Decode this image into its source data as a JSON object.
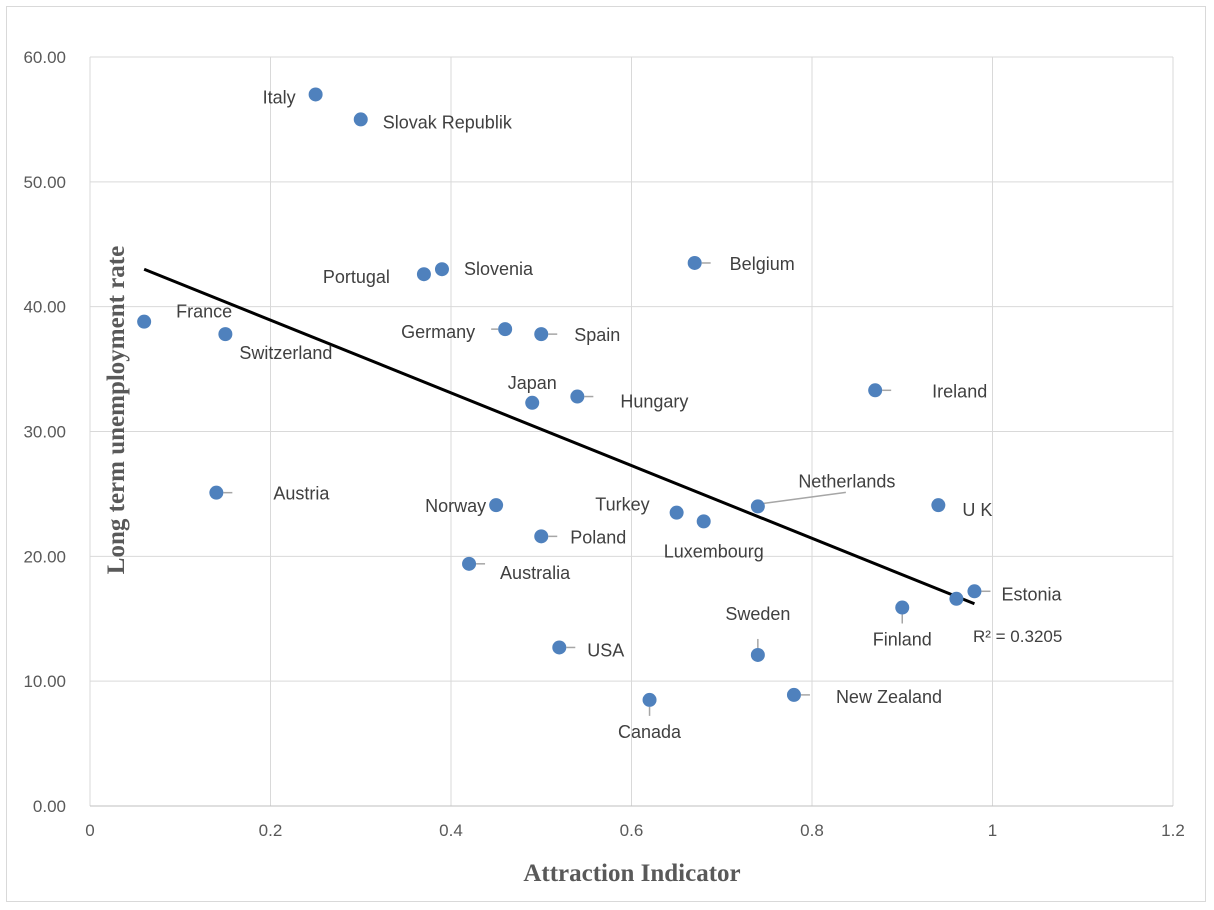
{
  "chart_data": {
    "type": "scatter",
    "xlabel": "Attraction Indicator",
    "ylabel": "Long term unemployment rate",
    "xlim": [
      0,
      1.2
    ],
    "ylim": [
      0,
      60
    ],
    "x_ticks": [
      "0",
      "0.2",
      "0.4",
      "0.6",
      "0.8",
      "1",
      "1.2"
    ],
    "y_ticks": [
      "0.00",
      "10.00",
      "20.00",
      "30.00",
      "40.00",
      "50.00",
      "60.00"
    ],
    "grid": true,
    "legend": "none",
    "marker_color": "#4f81bd",
    "trendline": {
      "type": "linear",
      "x": [
        0.06,
        0.98
      ],
      "y": [
        43.0,
        16.2
      ],
      "r_squared_label": "R² = 0.3205",
      "color": "#000000"
    },
    "points": [
      {
        "label": "Italy",
        "x": 0.25,
        "y": 57.0
      },
      {
        "label": "Slovak Republik",
        "x": 0.3,
        "y": 55.0
      },
      {
        "label": "Portugal",
        "x": 0.37,
        "y": 42.6
      },
      {
        "label": "Slovenia",
        "x": 0.39,
        "y": 43.0
      },
      {
        "label": "Belgium",
        "x": 0.67,
        "y": 43.5
      },
      {
        "label": "France",
        "x": 0.06,
        "y": 38.8
      },
      {
        "label": "Switzerland",
        "x": 0.15,
        "y": 37.8
      },
      {
        "label": "Germany",
        "x": 0.46,
        "y": 38.2
      },
      {
        "label": "Spain",
        "x": 0.5,
        "y": 37.8
      },
      {
        "label": "Japan",
        "x": 0.49,
        "y": 32.3
      },
      {
        "label": "Hungary",
        "x": 0.54,
        "y": 32.8
      },
      {
        "label": "Ireland",
        "x": 0.87,
        "y": 33.3
      },
      {
        "label": "Austria",
        "x": 0.14,
        "y": 25.1
      },
      {
        "label": "Norway",
        "x": 0.45,
        "y": 24.1
      },
      {
        "label": "Turkey",
        "x": 0.65,
        "y": 23.5
      },
      {
        "label": "Luxembourg",
        "x": 0.68,
        "y": 22.8
      },
      {
        "label": "Netherlands",
        "x": 0.74,
        "y": 24.0
      },
      {
        "label": "U K",
        "x": 0.94,
        "y": 24.1
      },
      {
        "label": "Poland",
        "x": 0.5,
        "y": 21.6
      },
      {
        "label": "Australia",
        "x": 0.42,
        "y": 19.4
      },
      {
        "label": "Estonia",
        "x": 0.98,
        "y": 17.2
      },
      {
        "label": "Finland",
        "x": 0.9,
        "y": 15.9
      },
      {
        "label": "",
        "x": 0.96,
        "y": 16.6
      },
      {
        "label": "Sweden",
        "x": 0.74,
        "y": 12.1
      },
      {
        "label": "USA",
        "x": 0.52,
        "y": 12.7
      },
      {
        "label": "New Zealand",
        "x": 0.78,
        "y": 8.9
      },
      {
        "label": "Canada",
        "x": 0.62,
        "y": 8.5
      }
    ]
  }
}
